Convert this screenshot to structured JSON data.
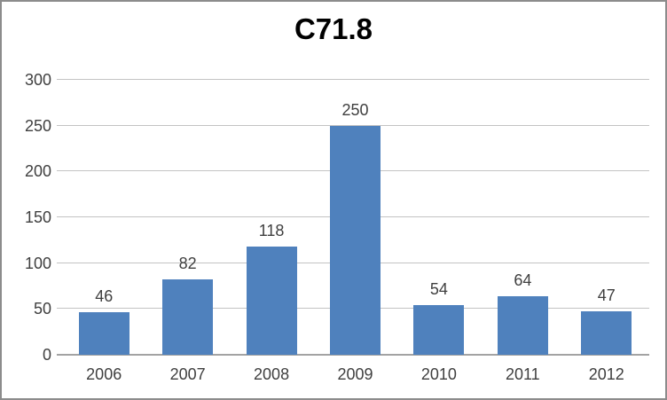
{
  "chart_data": {
    "type": "bar",
    "title": "C71.8",
    "categories": [
      "2006",
      "2007",
      "2008",
      "2009",
      "2010",
      "2011",
      "2012"
    ],
    "values": [
      46,
      82,
      118,
      250,
      54,
      64,
      47
    ],
    "xlabel": "",
    "ylabel": "",
    "ylim": [
      0,
      300
    ],
    "ytick_step": 50,
    "grid": true,
    "legend_position": "none",
    "bar_color": "#4F81BD",
    "gridline_color": "#C3C3C3",
    "axis_color": "#A3A3A3",
    "label_color": "#3F3F3F",
    "title_color": "#000000",
    "frame_border_color": "#8C8C8C"
  }
}
